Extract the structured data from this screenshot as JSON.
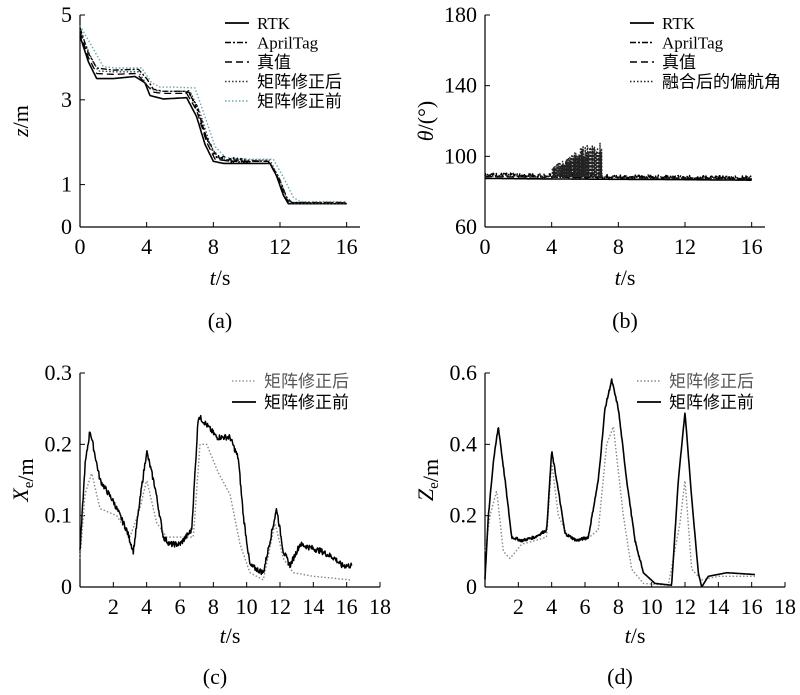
{
  "chart_data": [
    {
      "id": "a",
      "type": "line",
      "panel_label": "(a)",
      "xlabel_italic": "t",
      "xlabel_unit": "/s",
      "ylabel_italic": "z",
      "ylabel_unit": "/m",
      "xlim": [
        0,
        16.8
      ],
      "ylim": [
        0,
        5
      ],
      "xticks": [
        0,
        4,
        8,
        12,
        16
      ],
      "yticks": [
        0,
        1,
        3,
        5
      ],
      "legend": "top-right",
      "series": [
        {
          "name": "RTK",
          "color": "#000000",
          "dash": "solid",
          "width": 1.6,
          "points": [
            [
              0,
              4.5
            ],
            [
              0.5,
              3.9
            ],
            [
              1.0,
              3.5
            ],
            [
              2,
              3.5
            ],
            [
              3.3,
              3.55
            ],
            [
              3.9,
              3.4
            ],
            [
              4.2,
              3.1
            ],
            [
              5,
              3.02
            ],
            [
              6.4,
              3.05
            ],
            [
              7.0,
              2.6
            ],
            [
              7.5,
              1.95
            ],
            [
              8.0,
              1.55
            ],
            [
              8.6,
              1.5
            ],
            [
              10.5,
              1.5
            ],
            [
              11.4,
              1.5
            ],
            [
              11.8,
              1.2
            ],
            [
              12.2,
              0.75
            ],
            [
              12.5,
              0.55
            ],
            [
              16.0,
              0.55
            ]
          ]
        },
        {
          "name": "AprilTag",
          "color": "#000000",
          "dash": "6,2,2,2",
          "width": 1.4,
          "noise": 0.06,
          "noiseFrom": 6.3,
          "noiseTo": 10.2,
          "points": [
            [
              0,
              4.7
            ],
            [
              0.5,
              4.1
            ],
            [
              1.0,
              3.75
            ],
            [
              2,
              3.7
            ],
            [
              3.5,
              3.72
            ],
            [
              4.0,
              3.5
            ],
            [
              4.4,
              3.25
            ],
            [
              5,
              3.2
            ],
            [
              6.5,
              3.2
            ],
            [
              7.0,
              2.85
            ],
            [
              7.6,
              2.1
            ],
            [
              8.2,
              1.65
            ],
            [
              9,
              1.58
            ],
            [
              11.3,
              1.55
            ],
            [
              11.9,
              1.2
            ],
            [
              12.4,
              0.7
            ],
            [
              12.7,
              0.58
            ],
            [
              16.0,
              0.58
            ]
          ]
        },
        {
          "name": "真值",
          "color": "#000000",
          "dash": "7,4",
          "width": 1.3,
          "points": [
            [
              0,
              4.6
            ],
            [
              0.5,
              4.0
            ],
            [
              1.0,
              3.62
            ],
            [
              2,
              3.6
            ],
            [
              3.4,
              3.62
            ],
            [
              4.0,
              3.35
            ],
            [
              4.4,
              3.18
            ],
            [
              5,
              3.15
            ],
            [
              6.4,
              3.15
            ],
            [
              7.0,
              2.75
            ],
            [
              7.6,
              2.0
            ],
            [
              8.1,
              1.6
            ],
            [
              9,
              1.55
            ],
            [
              11.3,
              1.55
            ],
            [
              11.9,
              1.15
            ],
            [
              12.3,
              0.7
            ],
            [
              12.6,
              0.57
            ],
            [
              16.0,
              0.57
            ]
          ]
        },
        {
          "name": "矩阵修正后",
          "color": "#333333",
          "dash": "1.5,2",
          "width": 1.3,
          "points": [
            [
              0,
              4.65
            ],
            [
              0.6,
              4.05
            ],
            [
              1.1,
              3.68
            ],
            [
              2,
              3.66
            ],
            [
              3.5,
              3.66
            ],
            [
              4.1,
              3.3
            ],
            [
              4.5,
              3.22
            ],
            [
              5,
              3.2
            ],
            [
              6.6,
              3.2
            ],
            [
              7.2,
              2.7
            ],
            [
              7.8,
              1.95
            ],
            [
              8.3,
              1.62
            ],
            [
              9,
              1.58
            ],
            [
              11.4,
              1.58
            ],
            [
              12.0,
              1.1
            ],
            [
              12.4,
              0.68
            ],
            [
              12.7,
              0.55
            ],
            [
              16.0,
              0.55
            ]
          ]
        },
        {
          "name": "矩阵修正前",
          "color": "#6aa7b5",
          "dash": "1.5,2",
          "width": 1.4,
          "points": [
            [
              0,
              4.75
            ],
            [
              0.8,
              4.2
            ],
            [
              1.4,
              3.78
            ],
            [
              2.2,
              3.75
            ],
            [
              3.7,
              3.75
            ],
            [
              4.3,
              3.4
            ],
            [
              4.8,
              3.3
            ],
            [
              5.5,
              3.3
            ],
            [
              6.9,
              3.28
            ],
            [
              7.5,
              2.6
            ],
            [
              8.1,
              1.9
            ],
            [
              8.7,
              1.65
            ],
            [
              9.5,
              1.6
            ],
            [
              11.6,
              1.6
            ],
            [
              12.3,
              1.1
            ],
            [
              12.8,
              0.7
            ],
            [
              13.2,
              0.6
            ],
            [
              16.0,
              0.6
            ]
          ]
        }
      ]
    },
    {
      "id": "b",
      "type": "line",
      "panel_label": "(b)",
      "xlabel_italic": "t",
      "xlabel_unit": "/s",
      "ylabel_italic": "θ",
      "ylabel_unit": "/(°)",
      "xlim": [
        0,
        16.8
      ],
      "ylim": [
        60,
        180
      ],
      "xticks": [
        0,
        4,
        8,
        12,
        16
      ],
      "yticks": [
        60,
        100,
        140,
        180
      ],
      "legend": "top-right",
      "series": [
        {
          "name": "RTK",
          "color": "#000000",
          "dash": "solid",
          "width": 1.6,
          "points": [
            [
              0,
              87.5
            ],
            [
              4,
              87.2
            ],
            [
              8,
              87.0
            ],
            [
              12,
              86.8
            ],
            [
              16,
              86.5
            ]
          ]
        },
        {
          "name": "AprilTag",
          "color": "#000000",
          "dash": "6,2,2,2",
          "width": 1.4,
          "noise": 1.2,
          "noiseFrom": 0,
          "noiseTo": 16,
          "points": [
            [
              0,
              89.5
            ],
            [
              4,
              89.0
            ],
            [
              8,
              88.5
            ],
            [
              12,
              88.0
            ],
            [
              16,
              87.8
            ]
          ]
        },
        {
          "name": "真值",
          "color": "#000000",
          "dash": "7,4",
          "width": 1.3,
          "points": [
            [
              0,
              88.5
            ],
            [
              4,
              88.2
            ],
            [
              8,
              88.0
            ],
            [
              12,
              87.6
            ],
            [
              16,
              87.3
            ]
          ]
        },
        {
          "name": "融合后的偏航角",
          "color": "#222222",
          "dash": "1.5,2",
          "width": 1.4,
          "spikes": {
            "from": 4.0,
            "to": 7.0,
            "max": 108
          },
          "points": [
            [
              0,
              88.8
            ],
            [
              4,
              88.6
            ],
            [
              8,
              88.2
            ],
            [
              12,
              87.8
            ],
            [
              16,
              87.5
            ]
          ]
        }
      ]
    },
    {
      "id": "c",
      "type": "line",
      "panel_label": "(c)",
      "xlabel_italic": "t",
      "xlabel_unit": "/s",
      "ylabel_main": "X",
      "ylabel_sub": "e",
      "ylabel_unit": "/m",
      "xlim": [
        0,
        18
      ],
      "ylim": [
        0,
        0.3
      ],
      "xticks": [
        2,
        4,
        6,
        8,
        10,
        12,
        14,
        16,
        18
      ],
      "yticks": [
        0,
        0.1,
        0.2,
        0.3
      ],
      "legend": "top-right",
      "series": [
        {
          "name": "矩阵修正后",
          "color": "#888888",
          "dash": "1.5,2",
          "width": 1.4,
          "points": [
            [
              0,
              0.04
            ],
            [
              0.3,
              0.13
            ],
            [
              0.7,
              0.16
            ],
            [
              1.2,
              0.11
            ],
            [
              2.2,
              0.1
            ],
            [
              3.0,
              0.07
            ],
            [
              3.6,
              0.11
            ],
            [
              4.0,
              0.15
            ],
            [
              4.6,
              0.09
            ],
            [
              5.2,
              0.07
            ],
            [
              6.0,
              0.07
            ],
            [
              6.8,
              0.07
            ],
            [
              7.2,
              0.2
            ],
            [
              7.6,
              0.2
            ],
            [
              8.3,
              0.16
            ],
            [
              9.0,
              0.13
            ],
            [
              9.6,
              0.06
            ],
            [
              10.2,
              0.02
            ],
            [
              11.0,
              0.01
            ],
            [
              11.7,
              0.09
            ],
            [
              12.2,
              0.04
            ],
            [
              12.8,
              0.02
            ],
            [
              14,
              0.015
            ],
            [
              16.2,
              0.01
            ]
          ]
        },
        {
          "name": "矩阵修正前",
          "color": "#000000",
          "dash": "solid",
          "width": 1.5,
          "noise": 0.004,
          "noiseFrom": 0,
          "noiseTo": 16.3,
          "points": [
            [
              0,
              0.05
            ],
            [
              0.3,
              0.17
            ],
            [
              0.6,
              0.22
            ],
            [
              1.2,
              0.15
            ],
            [
              2.0,
              0.12
            ],
            [
              2.8,
              0.08
            ],
            [
              3.2,
              0.05
            ],
            [
              3.7,
              0.14
            ],
            [
              4.0,
              0.19
            ],
            [
              4.5,
              0.14
            ],
            [
              5.0,
              0.07
            ],
            [
              5.4,
              0.06
            ],
            [
              6.0,
              0.06
            ],
            [
              6.7,
              0.08
            ],
            [
              7.1,
              0.24
            ],
            [
              7.5,
              0.23
            ],
            [
              8.2,
              0.21
            ],
            [
              9.0,
              0.21
            ],
            [
              9.5,
              0.18
            ],
            [
              9.8,
              0.1
            ],
            [
              10.2,
              0.03
            ],
            [
              11.0,
              0.02
            ],
            [
              11.8,
              0.11
            ],
            [
              12.2,
              0.05
            ],
            [
              12.6,
              0.03
            ],
            [
              13.2,
              0.06
            ],
            [
              14.5,
              0.05
            ],
            [
              15.3,
              0.04
            ],
            [
              15.7,
              0.03
            ],
            [
              16.3,
              0.03
            ]
          ]
        }
      ]
    },
    {
      "id": "d",
      "type": "line",
      "panel_label": "(d)",
      "xlabel_italic": "t",
      "xlabel_unit": "/s",
      "ylabel_main": "Z",
      "ylabel_sub": "e",
      "ylabel_unit": "/m",
      "xlim": [
        0,
        18
      ],
      "ylim": [
        0,
        0.6
      ],
      "xticks": [
        2,
        4,
        6,
        8,
        10,
        12,
        14,
        16,
        18
      ],
      "yticks": [
        0,
        0.2,
        0.4,
        0.6
      ],
      "legend": "top-right",
      "series": [
        {
          "name": "矩阵修正后",
          "color": "#888888",
          "dash": "1.5,2",
          "width": 1.4,
          "points": [
            [
              0,
              0.1
            ],
            [
              0.3,
              0.2
            ],
            [
              0.7,
              0.27
            ],
            [
              1.1,
              0.1
            ],
            [
              1.5,
              0.08
            ],
            [
              2.2,
              0.12
            ],
            [
              3.0,
              0.13
            ],
            [
              3.7,
              0.14
            ],
            [
              4.0,
              0.35
            ],
            [
              4.4,
              0.2
            ],
            [
              5.0,
              0.14
            ],
            [
              6.0,
              0.13
            ],
            [
              6.8,
              0.16
            ],
            [
              7.3,
              0.4
            ],
            [
              7.7,
              0.45
            ],
            [
              8.3,
              0.2
            ],
            [
              8.8,
              0.05
            ],
            [
              9.5,
              0.01
            ],
            [
              11.0,
              0.005
            ],
            [
              11.7,
              0.18
            ],
            [
              12.0,
              0.3
            ],
            [
              12.4,
              0.05
            ],
            [
              13,
              0.02
            ],
            [
              14,
              0.03
            ],
            [
              16.2,
              0.03
            ]
          ]
        },
        {
          "name": "矩阵修正前",
          "color": "#000000",
          "dash": "solid",
          "width": 1.6,
          "noise": 0.004,
          "noiseFrom": 0,
          "noiseTo": 9.5,
          "points": [
            [
              0,
              0.02
            ],
            [
              0.2,
              0.2
            ],
            [
              0.5,
              0.35
            ],
            [
              0.8,
              0.45
            ],
            [
              1.2,
              0.3
            ],
            [
              1.6,
              0.14
            ],
            [
              2.2,
              0.13
            ],
            [
              3.0,
              0.14
            ],
            [
              3.7,
              0.16
            ],
            [
              4.0,
              0.38
            ],
            [
              4.3,
              0.3
            ],
            [
              4.8,
              0.15
            ],
            [
              5.5,
              0.13
            ],
            [
              6.2,
              0.14
            ],
            [
              6.8,
              0.3
            ],
            [
              7.2,
              0.5
            ],
            [
              7.6,
              0.58
            ],
            [
              8.0,
              0.5
            ],
            [
              8.5,
              0.3
            ],
            [
              9.0,
              0.13
            ],
            [
              9.5,
              0.04
            ],
            [
              10.2,
              0.01
            ],
            [
              11.2,
              0.005
            ],
            [
              11.6,
              0.3
            ],
            [
              12.0,
              0.49
            ],
            [
              12.4,
              0.25
            ],
            [
              12.8,
              0.04
            ],
            [
              13.0,
              0.0
            ],
            [
              13.4,
              0.03
            ],
            [
              14.5,
              0.04
            ],
            [
              16.2,
              0.035
            ]
          ]
        }
      ]
    }
  ]
}
